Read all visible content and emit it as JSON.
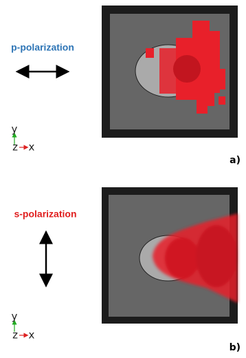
{
  "panels": [
    {
      "polarization": "p-polarization",
      "axes": {
        "y": "y",
        "z": "z",
        "x": "x"
      },
      "label": "a)"
    },
    {
      "polarization": "s-polarization",
      "axes": {
        "y": "y",
        "z": "z",
        "x": "x"
      },
      "label": "b)"
    }
  ]
}
